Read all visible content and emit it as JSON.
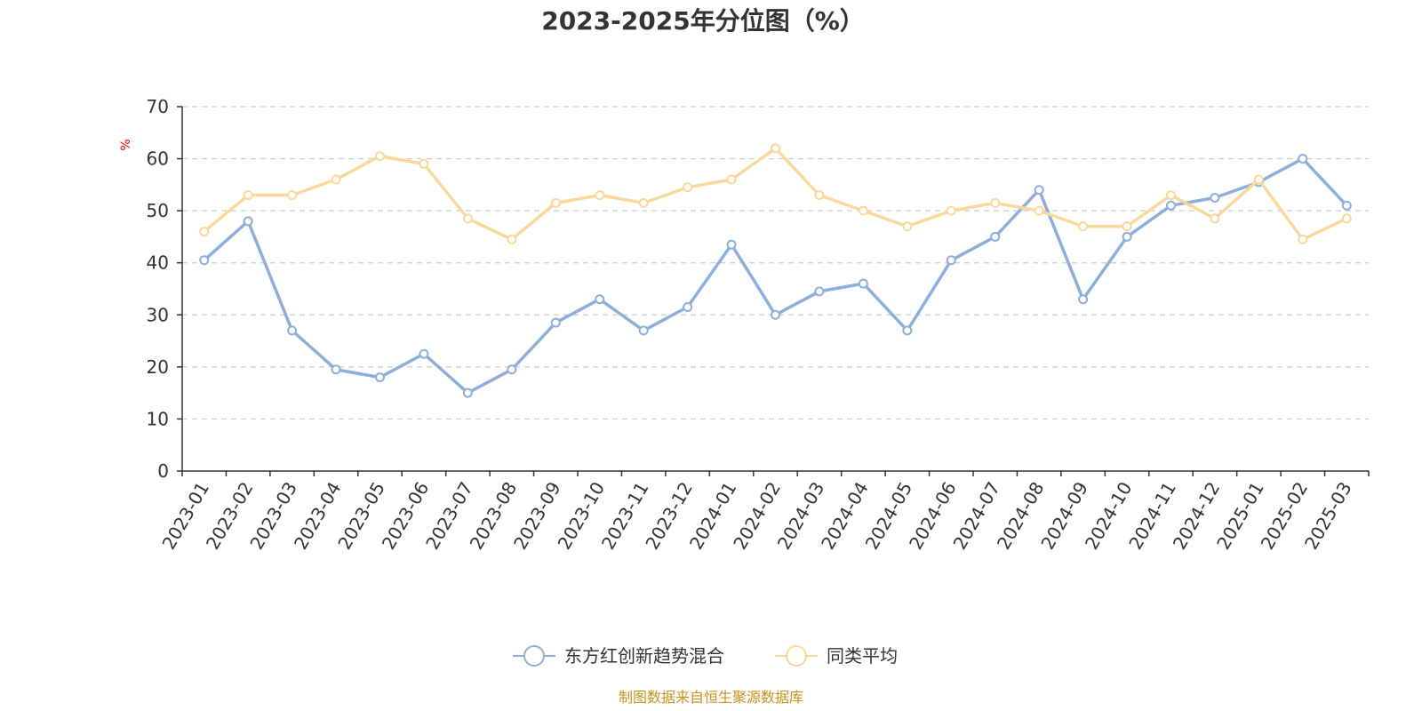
{
  "chart_data": {
    "type": "line",
    "title": "2023-2025年分位图（%）",
    "ylabel": "%",
    "ylim": [
      0,
      70
    ],
    "yticks": [
      0,
      10,
      20,
      30,
      40,
      50,
      60,
      70
    ],
    "grid": true,
    "legend_position": "bottom-center",
    "categories": [
      "2023-01",
      "2023-02",
      "2023-03",
      "2023-04",
      "2023-05",
      "2023-06",
      "2023-07",
      "2023-08",
      "2023-09",
      "2023-10",
      "2023-11",
      "2023-12",
      "2024-01",
      "2024-02",
      "2024-03",
      "2024-04",
      "2024-05",
      "2024-06",
      "2024-07",
      "2024-08",
      "2024-09",
      "2024-10",
      "2024-11",
      "2024-12",
      "2025-01",
      "2025-02",
      "2025-03"
    ],
    "series": [
      {
        "name": "东方红创新趋势混合",
        "color": "#8eaedb",
        "values": [
          40.5,
          48,
          27,
          19.5,
          18,
          22.5,
          15,
          19.5,
          28.5,
          33,
          27,
          31.5,
          43.5,
          30,
          34.5,
          36,
          27,
          40.5,
          45,
          54,
          33,
          45,
          51,
          52.5,
          55.5,
          60,
          51
        ]
      },
      {
        "name": "同类平均",
        "color": "#fad89b",
        "values": [
          46,
          53,
          53,
          56,
          60.5,
          59,
          48.5,
          44.5,
          51.5,
          53,
          51.5,
          54.5,
          56,
          62,
          53,
          50,
          47,
          50,
          51.5,
          50,
          47,
          47,
          53,
          48.5,
          56,
          44.5,
          48.5
        ]
      }
    ]
  },
  "footer": {
    "source_text": "制图数据来自恒生聚源数据库"
  }
}
